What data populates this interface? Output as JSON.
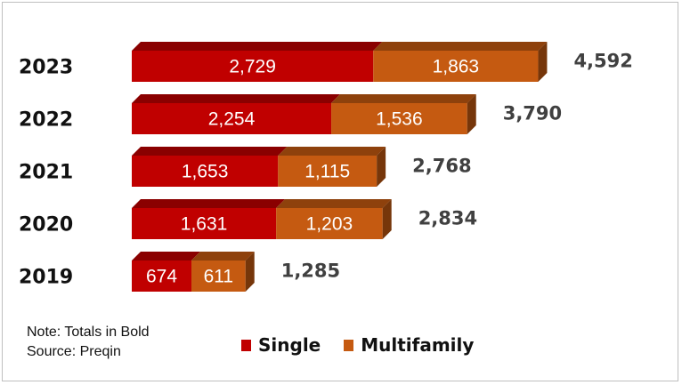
{
  "chart_data": {
    "type": "bar",
    "orientation": "horizontal",
    "stacked": true,
    "categories": [
      "2023",
      "2022",
      "2021",
      "2020",
      "2019"
    ],
    "series": [
      {
        "name": "Single",
        "values": [
          2729,
          2254,
          1653,
          1631,
          674
        ],
        "color": "#c00000"
      },
      {
        "name": "Multifamily",
        "values": [
          1863,
          1536,
          1115,
          1203,
          611
        ],
        "color": "#c55a11"
      }
    ],
    "totals": [
      4592,
      3790,
      2768,
      2834,
      1285
    ],
    "data_labels": {
      "Single": [
        "2,729",
        "2,254",
        "1,653",
        "1,631",
        "674"
      ],
      "Multifamily": [
        "1,863",
        "1,536",
        "1,115",
        "1,203",
        "611"
      ],
      "totals": [
        "4,592",
        "3,790",
        "2,768",
        "2,834",
        "1,285"
      ]
    },
    "xlim": [
      0,
      4592
    ],
    "grid": false,
    "legend_position": "bottom",
    "title": "",
    "xlabel": "",
    "ylabel": ""
  },
  "notes": {
    "line1": "Note: Totals in Bold",
    "line2": "Source: Preqin"
  },
  "legend": {
    "single": "Single",
    "multifamily": "Multifamily"
  }
}
